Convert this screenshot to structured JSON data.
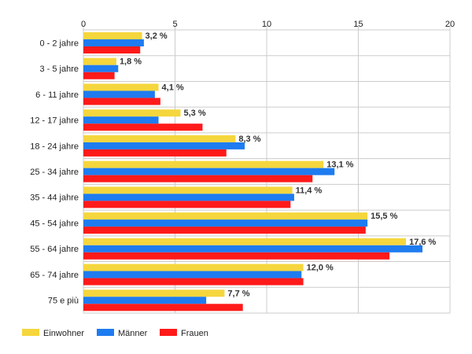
{
  "chart_data": {
    "type": "bar",
    "orientation": "horizontal",
    "categories": [
      "0 - 2 jahre",
      "3 - 5 jahre",
      "6 - 11 jahre",
      "12 - 17 jahre",
      "18 - 24 jahre",
      "25 - 34 jahre",
      "35 - 44 jahre",
      "45 - 54 jahre",
      "55 - 64 jahre",
      "65 - 74 jahre",
      "75 e più"
    ],
    "series": [
      {
        "name": "Einwohner",
        "color": "#f5d63d",
        "values": [
          3.2,
          1.8,
          4.1,
          5.3,
          8.3,
          13.1,
          11.4,
          15.5,
          17.6,
          12.0,
          7.7
        ]
      },
      {
        "name": "Männer",
        "color": "#1e7cf0",
        "values": [
          3.3,
          1.9,
          3.9,
          4.1,
          8.8,
          13.7,
          11.5,
          15.5,
          18.5,
          11.9,
          6.7
        ]
      },
      {
        "name": "Frauen",
        "color": "#ff1a1a",
        "values": [
          3.1,
          1.7,
          4.2,
          6.5,
          7.8,
          12.5,
          11.3,
          15.4,
          16.7,
          12.0,
          8.7
        ]
      }
    ],
    "data_labels": [
      "3,2 %",
      "1,8 %",
      "4,1 %",
      "5,3 %",
      "8,3 %",
      "13,1 %",
      "11,4 %",
      "15,5 %",
      "17,6 %",
      "12,0 %",
      "7,7 %"
    ],
    "xlim": [
      0,
      20
    ],
    "x_ticks": [
      0,
      5,
      10,
      15,
      20
    ],
    "x_tick_labels": [
      "0",
      "5",
      "10",
      "15",
      "20"
    ],
    "x_axis_position": "top",
    "grid": true,
    "legend_position": "bottom-left"
  }
}
